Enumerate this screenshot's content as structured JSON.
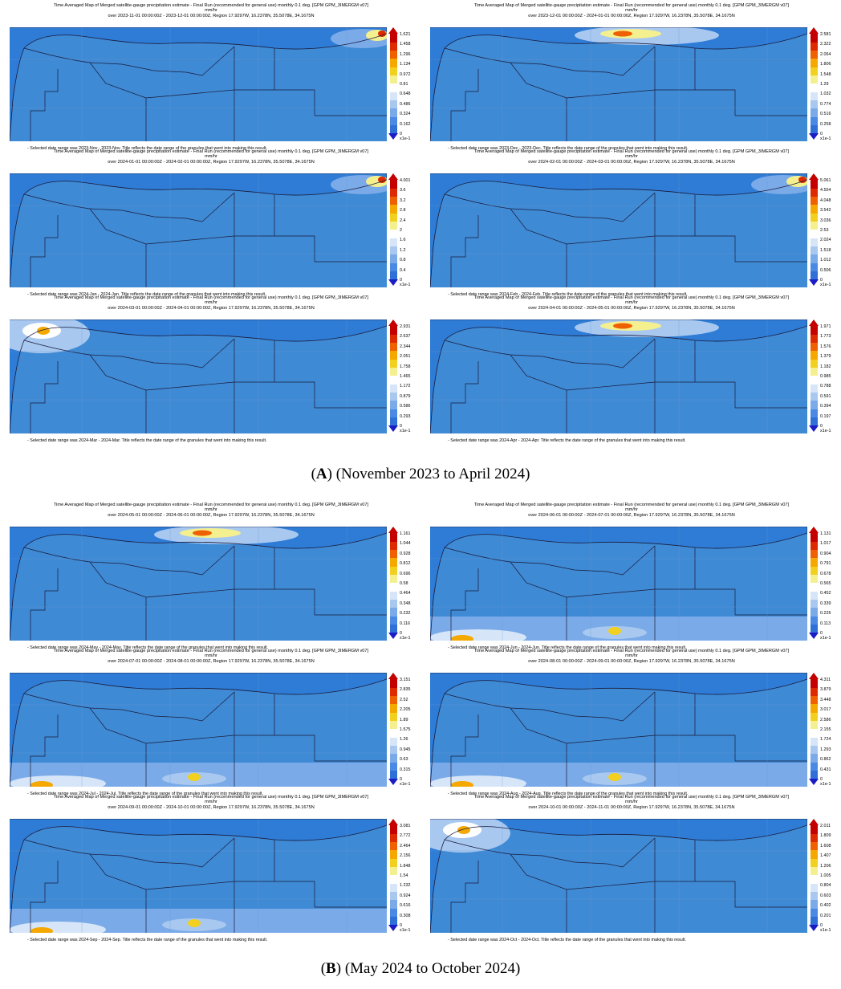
{
  "colors": {
    "ocean": "#2e7cd6",
    "land": "#3f8ad4",
    "border": "#1a1a3a",
    "scale": [
      "#2f6fd8",
      "#4a8ae4",
      "#7aaae8",
      "#a8c8f0",
      "#d6e6f8",
      "#ffffff",
      "#f4f090",
      "#f2d020",
      "#f5a800",
      "#ee6000",
      "#de2a00",
      "#c40000"
    ]
  },
  "groups": [
    {
      "caption_letter": "A",
      "caption_rest": " (November 2023 to April 2024)",
      "panels": [
        {
          "title": "Time Averaged Map of Merged satellite-gauge precipitation estimate - Final Run (recommended for general use) monthly 0.1 deg. [GPM GPM_3IMERGM v07]",
          "units": "mm/hr",
          "period": "over 2023-11-01 00:00:00Z - 2023-12-01 00:00:00Z, Region 17.9297W, 16.2378N, 35.5078E, 34.1675N",
          "note": "- Selected date range was 2023-Nov - 2023-Nov. Title reflects the date range of the granules that went into making this result.",
          "scale_ticks": [
            "1.621",
            "1.458",
            "1.296",
            "1.134",
            "0.972",
            "0.81",
            "0.648",
            "0.486",
            "0.324",
            "0.162",
            "0"
          ],
          "scale_unit": "x1e-1",
          "hotspot": "north-east"
        },
        {
          "title": "Time Averaged Map of Merged satellite-gauge precipitation estimate - Final Run (recommended for general use) monthly 0.1 deg. [GPM GPM_3IMERGM v07]",
          "units": "mm/hr",
          "period": "over 2023-12-01 00:00:00Z - 2024-01-01 00:00:00Z, Region 17.9297W, 16.2378N, 35.5078E, 34.1675N",
          "note": "- Selected date range was 2023-Dec - 2023-Dec. Title reflects the date range of the granules that went into making this result.",
          "scale_ticks": [
            "2.581",
            "2.322",
            "2.064",
            "1.806",
            "1.548",
            "1.29",
            "1.032",
            "0.774",
            "0.516",
            "0.258",
            "0"
          ],
          "scale_unit": "x1e-1",
          "hotspot": "north-center"
        },
        {
          "title": "Time Averaged Map of Merged satellite-gauge precipitation estimate - Final Run (recommended for general use) monthly 0.1 deg. [GPM GPM_3IMERGM v07]",
          "units": "mm/hr",
          "period": "over 2024-01-01 00:00:00Z - 2024-02-01 00:00:00Z, Region 17.9297W, 16.2378N, 35.5078E, 34.1675N",
          "note": "- Selected date range was 2024-Jan - 2024-Jan. Title reflects the date range of the granules that went into making this result.",
          "scale_ticks": [
            "4.001",
            "3.6",
            "3.2",
            "2.8",
            "2.4",
            "2",
            "1.6",
            "1.2",
            "0.8",
            "0.4",
            "0"
          ],
          "scale_unit": "x1e-1",
          "hotspot": "north-east"
        },
        {
          "title": "Time Averaged Map of Merged satellite-gauge precipitation estimate - Final Run (recommended for general use) monthly 0.1 deg. [GPM GPM_3IMERGM v07]",
          "units": "mm/hr",
          "period": "over 2024-02-01 00:00:00Z - 2024-03-01 00:00:00Z, Region 17.9297W, 16.2378N, 35.5078E, 34.1675N",
          "note": "- Selected date range was 2024-Feb - 2024-Feb. Title reflects the date range of the granules that went into making this result.",
          "scale_ticks": [
            "5.061",
            "4.554",
            "4.048",
            "3.542",
            "3.036",
            "2.53",
            "2.024",
            "1.518",
            "1.012",
            "0.506",
            "0"
          ],
          "scale_unit": "x1e-1",
          "hotspot": "north-east"
        },
        {
          "title": "Time Averaged Map of Merged satellite-gauge precipitation estimate - Final Run (recommended for general use) monthly 0.1 deg. [GPM GPM_3IMERGM v07]",
          "units": "mm/hr",
          "period": "over 2024-03-01 00:00:00Z - 2024-04-01 00:00:00Z, Region 17.9297W, 16.2378N, 35.5078E, 34.1675N",
          "note": "- Selected date range was 2024-Mar - 2024-Mar. Title reflects the date range of the granules that went into making this result.",
          "scale_ticks": [
            "2.931",
            "2.637",
            "2.344",
            "2.051",
            "1.758",
            "1.465",
            "1.172",
            "0.879",
            "0.586",
            "0.293",
            "0"
          ],
          "scale_unit": "x1e-1",
          "hotspot": "north-west"
        },
        {
          "title": "Time Averaged Map of Merged satellite-gauge precipitation estimate - Final Run (recommended for general use) monthly 0.1 deg. [GPM GPM_3IMERGM v07]",
          "units": "mm/hr",
          "period": "over 2024-04-01 00:00:00Z - 2024-05-01 00:00:00Z, Region 17.9297W, 16.2378N, 35.5078E, 34.1675N",
          "note": "- Selected date range was 2024-Apr - 2024-Apr. Title reflects the date range of the granules that went into making this result.",
          "scale_ticks": [
            "1.971",
            "1.773",
            "1.576",
            "1.379",
            "1.182",
            "0.985",
            "0.788",
            "0.591",
            "0.394",
            "0.197",
            "0"
          ],
          "scale_unit": "x1e-1",
          "hotspot": "north-center"
        }
      ]
    },
    {
      "caption_letter": "B",
      "caption_rest": " (May 2024 to October 2024)",
      "panels": [
        {
          "title": "Time Averaged Map of Merged satellite-gauge precipitation estimate - Final Run (recommended for general use) monthly 0.1 deg. [GPM GPM_3IMERGM v07]",
          "units": "mm/hr",
          "period": "over 2024-05-01 00:00:00Z - 2024-06-01 00:00:00Z, Region 17.9297W, 16.2378N, 35.5078E, 34.1675N",
          "note": "- Selected date range was 2024-May - 2024-May. Title reflects the date range of the granules that went into making this result.",
          "scale_ticks": [
            "1.161",
            "1.044",
            "0.928",
            "0.812",
            "0.696",
            "0.58",
            "0.464",
            "0.348",
            "0.232",
            "0.116",
            "0"
          ],
          "scale_unit": "x1e-1",
          "hotspot": "north-center"
        },
        {
          "title": "Time Averaged Map of Merged satellite-gauge precipitation estimate - Final Run (recommended for general use) monthly 0.1 deg. [GPM GPM_3IMERGM v07]",
          "units": "mm/hr",
          "period": "over 2024-06-01 00:00:00Z - 2024-07-01 00:00:00Z, Region 17.9297W, 16.2378N, 35.5078E, 34.1675N",
          "note": "- Selected date range was 2024-Jun - 2024-Jun. Title reflects the date range of the granules that went into making this result.",
          "scale_ticks": [
            "1.131",
            "1.017",
            "0.904",
            "0.791",
            "0.678",
            "0.565",
            "0.452",
            "0.339",
            "0.226",
            "0.113",
            "0"
          ],
          "scale_unit": "x1e-1",
          "hotspot": "south"
        },
        {
          "title": "Time Averaged Map of Merged satellite-gauge precipitation estimate - Final Run (recommended for general use) monthly 0.1 deg. [GPM GPM_3IMERGM v07]",
          "units": "mm/hr",
          "period": "over 2024-07-01 00:00:00Z - 2024-08-01 00:00:00Z, Region 17.9297W, 16.2378N, 35.5078E, 34.1675N",
          "note": "- Selected date range was 2024-Jul - 2024-Jul. Title reflects the date range of the granules that went into making this result.",
          "scale_ticks": [
            "3.151",
            "2.835",
            "2.52",
            "2.205",
            "1.89",
            "1.575",
            "1.26",
            "0.945",
            "0.63",
            "0.315",
            "0"
          ],
          "scale_unit": "x1e-1",
          "hotspot": "south"
        },
        {
          "title": "Time Averaged Map of Merged satellite-gauge precipitation estimate - Final Run (recommended for general use) monthly 0.1 deg. [GPM GPM_3IMERGM v07]",
          "units": "mm/hr",
          "period": "over 2024-08-01 00:00:00Z - 2024-09-01 00:00:00Z, Region 17.9297W, 16.2378N, 35.5078E, 34.1675N",
          "note": "- Selected date range was 2024-Aug - 2024-Aug. Title reflects the date range of the granules that went into making this result.",
          "scale_ticks": [
            "4.311",
            "3.879",
            "3.448",
            "3.017",
            "2.586",
            "2.155",
            "1.724",
            "1.293",
            "0.862",
            "0.431",
            "0"
          ],
          "scale_unit": "x1e-1",
          "hotspot": "south"
        },
        {
          "title": "Time Averaged Map of Merged satellite-gauge precipitation estimate - Final Run (recommended for general use) monthly 0.1 deg. [GPM GPM_3IMERGM v07]",
          "units": "mm/hr",
          "period": "over 2024-09-01 00:00:00Z - 2024-10-01 00:00:00Z, Region 17.9297W, 16.2378N, 35.5078E, 34.1675N",
          "note": "- Selected date range was 2024-Sep - 2024-Sep. Title reflects the date range of the granules that went into making this result.",
          "scale_ticks": [
            "3.081",
            "2.772",
            "2.464",
            "2.156",
            "1.848",
            "1.54",
            "1.232",
            "0.924",
            "0.616",
            "0.308",
            "0"
          ],
          "scale_unit": "x1e-1",
          "hotspot": "south"
        },
        {
          "title": "Time Averaged Map of Merged satellite-gauge precipitation estimate - Final Run (recommended for general use) monthly 0.1 deg. [GPM GPM_3IMERGM v07]",
          "units": "mm/hr",
          "period": "over 2024-10-01 00:00:00Z - 2024-11-01 00:00:00Z, Region 17.9297W, 16.2378N, 35.5078E, 34.1675N",
          "note": "- Selected date range was 2024-Oct - 2024-Oct. Title reflects the date range of the granules that went into making this result.",
          "scale_ticks": [
            "2.011",
            "1.809",
            "1.608",
            "1.407",
            "1.206",
            "1.005",
            "0.804",
            "0.603",
            "0.402",
            "0.201",
            "0"
          ],
          "scale_unit": "x1e-1",
          "hotspot": "north-west"
        }
      ]
    }
  ]
}
